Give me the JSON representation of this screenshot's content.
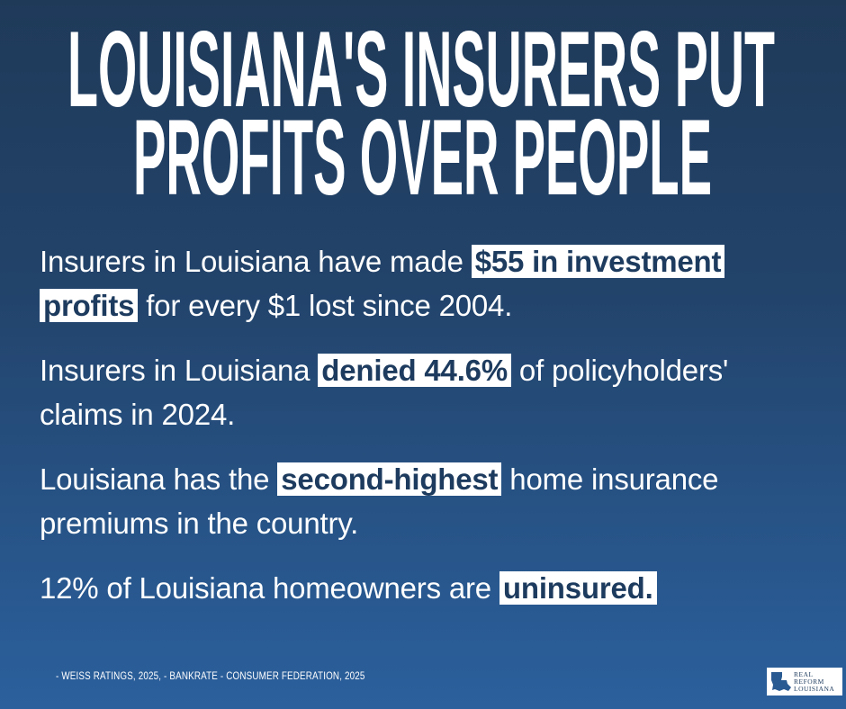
{
  "title": {
    "lines": [
      "LOUISIANA'S INSURERS PUT",
      "PROFITS OVER PEOPLE"
    ]
  },
  "facts": [
    {
      "segments": [
        {
          "text": "Insurers in Louisiana have made ",
          "highlight": false
        },
        {
          "text": "$55 in investment profits",
          "highlight": true
        },
        {
          "text": " for every $1 lost since 2004.",
          "highlight": false
        }
      ]
    },
    {
      "segments": [
        {
          "text": "Insurers in Louisiana ",
          "highlight": false
        },
        {
          "text": "denied 44.6%",
          "highlight": true
        },
        {
          "text": " of policyholders' claims in 2024.",
          "highlight": false
        }
      ]
    },
    {
      "segments": [
        {
          "text": "Louisiana has the ",
          "highlight": false
        },
        {
          "text": "second-highest",
          "highlight": true
        },
        {
          "text": " home insurance premiums in the country.",
          "highlight": false
        }
      ]
    },
    {
      "segments": [
        {
          "text": "12% of Louisiana homeowners are ",
          "highlight": false
        },
        {
          "text": "uninsured.",
          "highlight": true
        }
      ]
    }
  ],
  "source": "- WEISS RATINGS, 2025, - BANKRATE - CONSUMER FEDERATION, 2025",
  "logo": {
    "lines": [
      "REAL",
      "REFORM",
      "LOUISIANA"
    ]
  }
}
